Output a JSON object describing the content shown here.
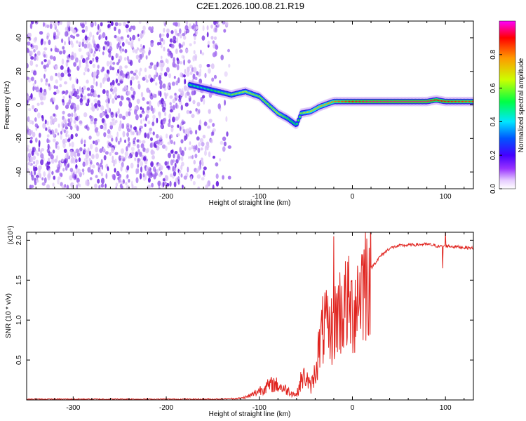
{
  "title": "C2E1.2026.100.08.21.R19",
  "colors": {
    "snr_line": "#e0241f",
    "noise_dots": "#7a1ee0",
    "colormap": [
      "#ffffff",
      "#e6ccff",
      "#9933ff",
      "#4400ff",
      "#0055ff",
      "#00e6ff",
      "#00ff44",
      "#ccff00",
      "#ff9900",
      "#ff0000",
      "#ff00ff"
    ]
  },
  "chart_data": [
    {
      "type": "heatmap",
      "xlabel": "Height of straight line (km)",
      "ylabel": "Frequency (Hz)",
      "xlim": [
        -350,
        130
      ],
      "ylim": [
        -50,
        50
      ],
      "xticks": [
        -300,
        -200,
        -100,
        0,
        100
      ],
      "yticks": [
        -40,
        -20,
        0,
        20,
        40
      ],
      "colorbar": {
        "label": "Normalized spectral amplitude",
        "range": [
          0,
          1
        ],
        "ticks": [
          "0.0",
          "0.2",
          "0.4",
          "0.6",
          "0.8"
        ]
      },
      "noise_region_x": [
        -350,
        -140
      ],
      "ridge": {
        "x": [
          -175,
          -160,
          -145,
          -130,
          -115,
          -100,
          -90,
          -80,
          -70,
          -60,
          -55,
          -45,
          -35,
          -20,
          -10,
          0,
          20,
          40,
          60,
          80,
          90,
          100,
          130
        ],
        "freq": [
          12,
          10,
          8,
          6,
          8,
          5,
          0,
          -5,
          -8,
          -12,
          -5,
          -4,
          -1,
          2,
          2,
          2,
          2,
          2,
          2,
          2,
          3,
          2,
          2
        ],
        "amplitude": [
          0.5,
          0.45,
          0.55,
          0.6,
          0.65,
          0.6,
          0.6,
          0.65,
          0.55,
          0.5,
          0.6,
          0.7,
          0.75,
          0.8,
          0.85,
          0.9,
          0.95,
          0.95,
          0.95,
          0.95,
          0.9,
          0.9,
          0.85
        ]
      }
    },
    {
      "type": "line",
      "xlabel": "Height of straight line (km)",
      "ylabel": "SNR (10 * v/v)",
      "y_multiplier": "(x10⁴)",
      "xlim": [
        -350,
        130
      ],
      "ylim": [
        0,
        2.1
      ],
      "xticks": [
        -300,
        -200,
        -100,
        0,
        100
      ],
      "yticks": [
        0.5,
        1.0,
        1.5,
        2.0
      ],
      "series": [
        {
          "x": [
            -350,
            -150,
            -120,
            -110,
            -100,
            -95,
            -85,
            -80,
            -70,
            -60,
            -55,
            -50,
            -45,
            -40,
            -35,
            -30,
            -25,
            -22,
            -20,
            -15,
            -10,
            -5,
            0,
            5,
            10,
            15,
            20,
            30,
            40,
            50,
            60,
            80,
            95,
            100,
            110,
            130
          ],
          "y": [
            0.01,
            0.01,
            0.02,
            0.05,
            0.12,
            0.15,
            0.2,
            0.18,
            0.12,
            0.06,
            0.25,
            0.3,
            0.15,
            0.35,
            0.7,
            0.95,
            0.8,
            0.9,
            1.0,
            1.1,
            1.15,
            1.2,
            1.1,
            1.3,
            1.45,
            1.55,
            1.65,
            1.8,
            1.9,
            1.93,
            1.94,
            1.95,
            1.92,
            1.93,
            1.92,
            1.9
          ]
        }
      ]
    }
  ]
}
